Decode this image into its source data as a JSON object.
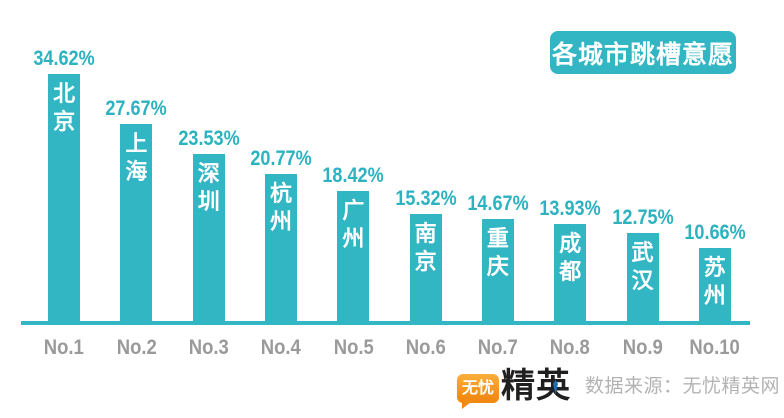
{
  "title_badge": {
    "label": "各城市跳槽意愿"
  },
  "chart_data": {
    "type": "bar",
    "title": "各城市跳槽意愿",
    "categories": [
      "No.1",
      "No.2",
      "No.3",
      "No.4",
      "No.5",
      "No.6",
      "No.7",
      "No.8",
      "No.9",
      "No.10"
    ],
    "cities": [
      "北京",
      "上海",
      "深圳",
      "杭州",
      "广州",
      "南京",
      "重庆",
      "成都",
      "武汉",
      "苏州"
    ],
    "values": [
      34.62,
      27.67,
      23.53,
      20.77,
      18.42,
      15.32,
      14.67,
      13.93,
      12.75,
      10.66
    ],
    "value_suffix": "%",
    "xlabel": "",
    "ylabel": "",
    "ylim": [
      0,
      40
    ],
    "grid": false,
    "legend": false,
    "bar_color": "#32b6c3",
    "value_label_color": "#2db2c0",
    "axis_label_color": "#9a9a9a"
  },
  "footer": {
    "logo": {
      "bubble_text": "无忧",
      "brand_text": "精英",
      "bubble_color": "#f08a12",
      "tie_color": "#1c70b8"
    },
    "source_text": "数据来源：无忧精英网"
  },
  "colors": {
    "teal": "#32b6c3",
    "label_teal": "#2db2c0",
    "axis_gray": "#9a9a9a",
    "source_gray": "#b3b3b3",
    "orange": "#f08a12",
    "tie_blue": "#1c70b8"
  }
}
